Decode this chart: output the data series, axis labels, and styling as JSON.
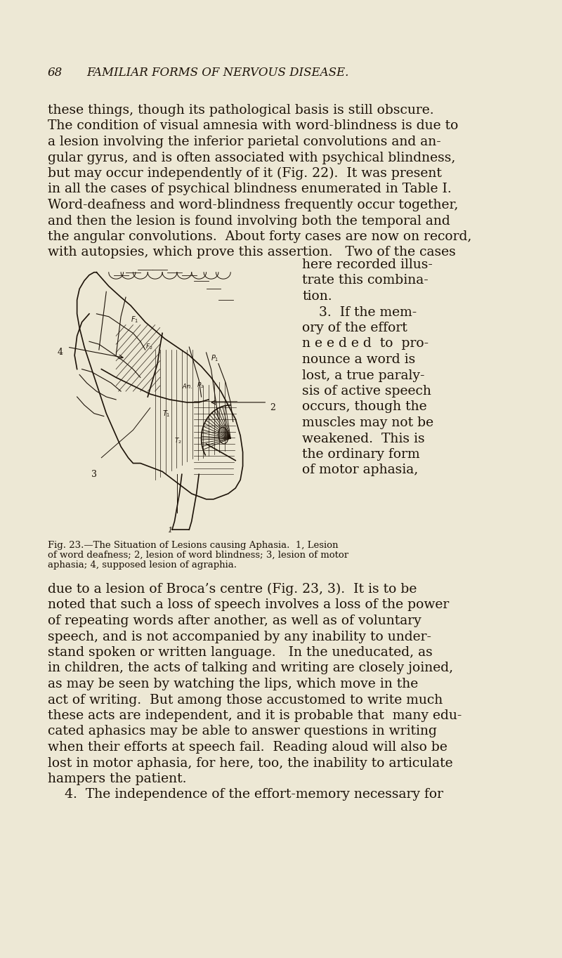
{
  "background_color": "#ede8d5",
  "page_width": 8.0,
  "page_height": 13.64,
  "dpi": 100,
  "text_color": "#1c1208",
  "header": "68     FAMILIAR FORMS OF NERVOUS DISEASE.",
  "body_lines_full": [
    "these things, though its pathological basis is still obscure.",
    "The condition of visual amnesia with word-blindness is due to",
    "a lesion involving the inferior parietal convolutions and an-",
    "gular gyrus, and is often associated with psychical blindness,",
    "but may occur independently of it (Fig. 22).  It was present",
    "in all the cases of psychical blindness enumerated in Table I.",
    "Word-deafness and word-blindness frequently occur together,",
    "and then the lesion is found involving both the temporal and",
    "the angular convolutions.  About forty cases are now on record,",
    "with autopsies, which prove this assertion.   Two of the cases"
  ],
  "right_col_lines": [
    "here recorded illus-",
    "trate this combina-",
    "tion.",
    "    3.  If the mem-",
    "ory of the effort",
    "n e e d e d  to  pro-",
    "nounce a word is",
    "lost, a true paraly-",
    "sis of active speech",
    "occurs, though the",
    "muscles may not be",
    "weakened.  This is",
    "the ordinary form",
    "of motor aphasia,"
  ],
  "caption_line1": "Fig. 23.—The Situation of Lesions causing Aphasia.  1, Lesion",
  "caption_line2": "of word deafness; 2, lesion of word blindness; 3, lesion of motor",
  "caption_line3": "aphasia; 4, supposed lesion of agraphia.",
  "bottom_lines": [
    "due to a lesion of Broca’s centre (Fig. 23, 3).  It is to be",
    "noted that such a loss of speech involves a loss of the power",
    "of repeating words after another, as well as of voluntary",
    "speech, and is not accompanied by any inability to under-",
    "stand spoken or written language.   In the uneducated, as",
    "in children, the acts of talking and writing are closely joined,",
    "as may be seen by watching the lips, which move in the",
    "act of writing.  But among those accustomed to write much",
    "these acts are independent, and it is probable that  many edu-",
    "cated aphasics may be able to answer questions in writing",
    "when their efforts at speech fail.  Reading aloud will also be",
    "lost in motor aphasia, for here, too, the inability to articulate",
    "hampers the patient.",
    "    4.  The independence of the effort-memory necessary for"
  ]
}
